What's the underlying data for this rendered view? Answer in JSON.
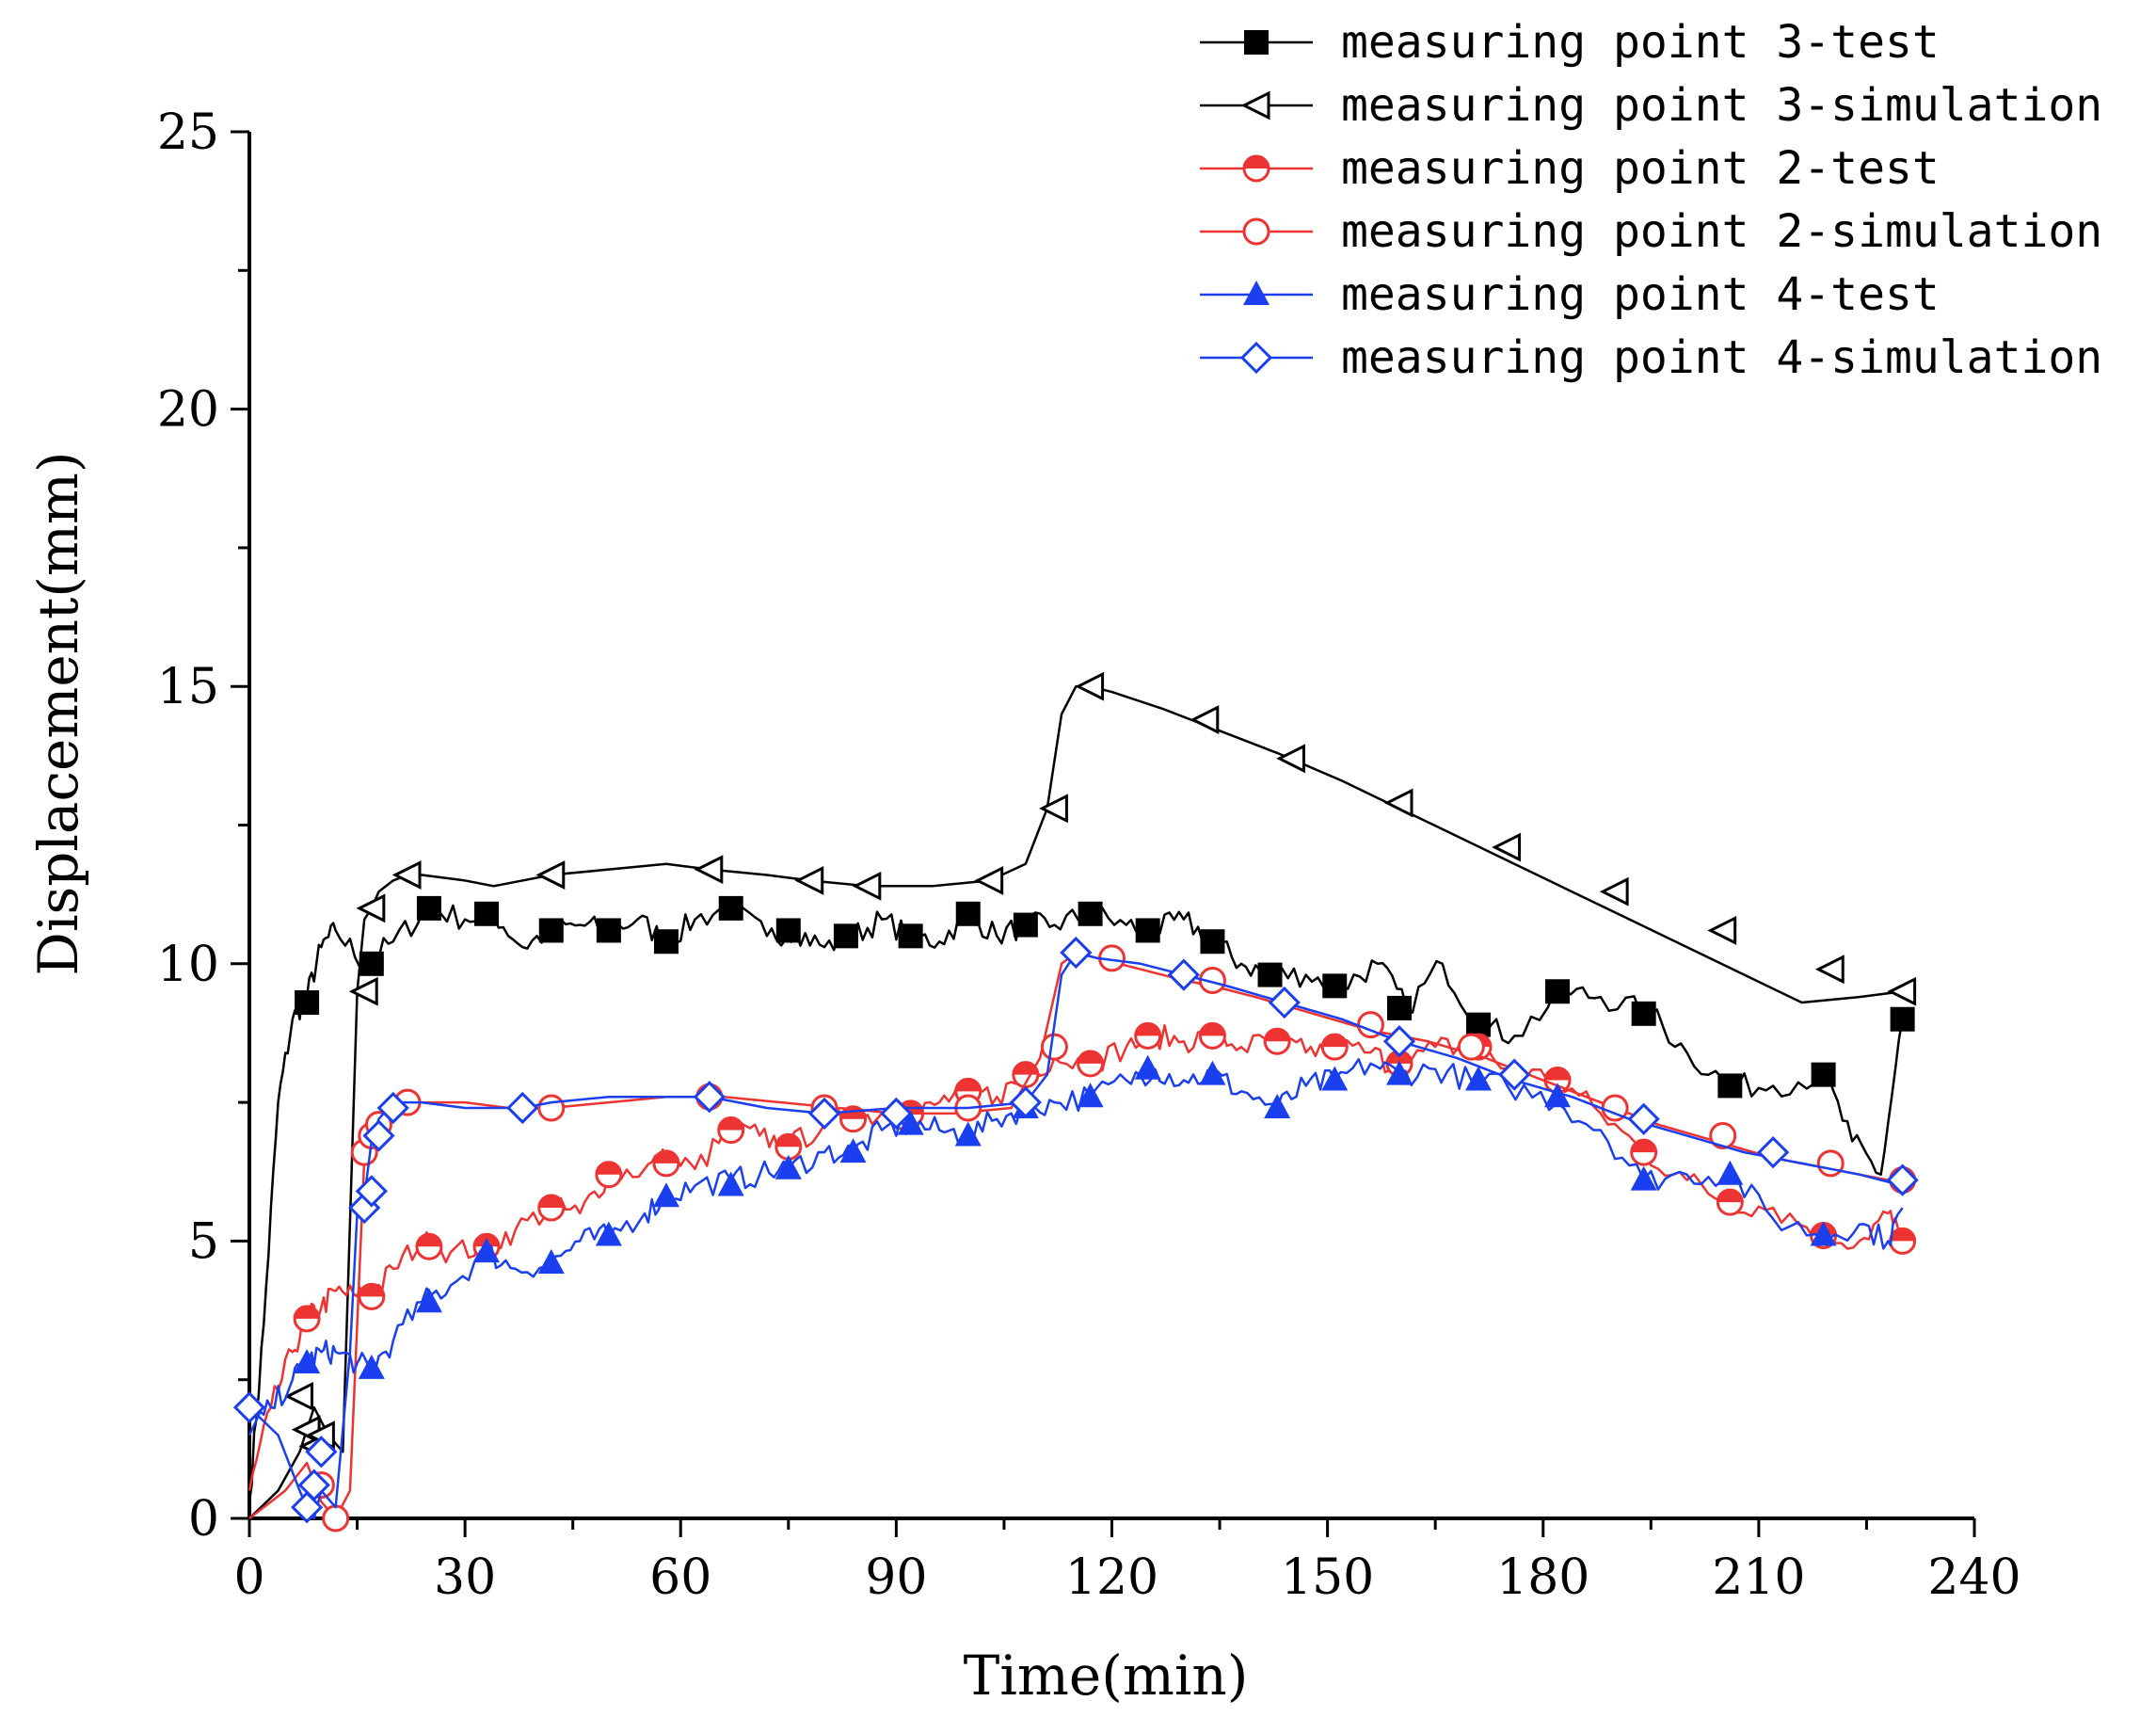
{
  "chart_data": {
    "type": "line",
    "title": "",
    "xlabel": "Time(min)",
    "ylabel": "Displacement(mm)",
    "xlim": [
      0,
      240
    ],
    "ylim": [
      0,
      25
    ],
    "xticks": [
      0,
      30,
      60,
      90,
      120,
      150,
      180,
      210,
      240
    ],
    "yticks": [
      0,
      5,
      10,
      15,
      20,
      25
    ],
    "grid": false,
    "legend_position": "top-right",
    "series": [
      {
        "name": "measuring point 3-test",
        "color": "#000000",
        "marker": "filled-square",
        "x": [
          0,
          2,
          4,
          6,
          8,
          10,
          12,
          16,
          20,
          25,
          30,
          34,
          38,
          42,
          46,
          50,
          54,
          58,
          62,
          67,
          72,
          76,
          80,
          84,
          88,
          92,
          96,
          100,
          104,
          108,
          112,
          117,
          122,
          126,
          130,
          134,
          138,
          142,
          147,
          152,
          157,
          161,
          166,
          171,
          176,
          183,
          188,
          195,
          200,
          206,
          212,
          219,
          223,
          227,
          230
        ],
        "y": [
          0.3,
          3.5,
          7.5,
          9.0,
          9.4,
          10.3,
          10.6,
          10.0,
          10.4,
          11.0,
          10.8,
          10.9,
          10.3,
          10.6,
          10.7,
          10.6,
          10.8,
          10.4,
          10.8,
          11.0,
          10.5,
          10.6,
          10.3,
          10.5,
          10.8,
          10.5,
          10.4,
          10.9,
          10.5,
          10.7,
          10.7,
          10.9,
          10.7,
          10.6,
          10.8,
          10.4,
          10.0,
          9.8,
          9.8,
          9.6,
          10.0,
          9.2,
          10.0,
          8.9,
          8.7,
          9.5,
          9.4,
          9.1,
          8.4,
          7.8,
          7.8,
          8.0,
          6.8,
          6.2,
          9.0
        ],
        "marker_x": [
          8,
          17,
          25,
          33,
          42,
          50,
          58,
          67,
          75,
          83,
          92,
          100,
          108,
          117,
          125,
          134,
          142,
          151,
          160,
          171,
          182,
          194,
          206,
          219,
          230
        ],
        "marker_y": [
          9.3,
          10.0,
          11.0,
          10.9,
          10.6,
          10.6,
          10.4,
          11.0,
          10.6,
          10.5,
          10.5,
          10.9,
          10.7,
          10.9,
          10.6,
          10.4,
          9.8,
          9.6,
          9.2,
          8.9,
          9.5,
          9.1,
          7.8,
          8.0,
          9.0
        ]
      },
      {
        "name": "measuring point 3-simulation",
        "color": "#000000",
        "marker": "open-triangle-left",
        "x": [
          0,
          4,
          7,
          9,
          11,
          13,
          15,
          16,
          17,
          18,
          20,
          22,
          24,
          30,
          34,
          38,
          42,
          50,
          58,
          64,
          72,
          78,
          86,
          95,
          103,
          108,
          111,
          113,
          115,
          117,
          120,
          127,
          135,
          143,
          152,
          160,
          168,
          176,
          184,
          192,
          200,
          208,
          216,
          224,
          230
        ],
        "y": [
          0,
          0.5,
          1.2,
          2.0,
          1.5,
          1.2,
          9.5,
          10.8,
          11.0,
          11.3,
          11.5,
          11.6,
          11.6,
          11.5,
          11.4,
          11.5,
          11.6,
          11.7,
          11.8,
          11.7,
          11.6,
          11.5,
          11.4,
          11.4,
          11.5,
          11.8,
          12.8,
          14.5,
          15.0,
          15.0,
          14.9,
          14.6,
          14.2,
          13.8,
          13.3,
          12.8,
          12.3,
          11.8,
          11.3,
          10.8,
          10.3,
          9.8,
          9.3,
          9.4,
          9.5
        ],
        "marker_x": [
          7,
          8,
          9,
          10,
          16,
          17,
          22,
          42,
          64,
          78,
          86,
          103,
          112,
          117,
          133,
          145,
          160,
          175,
          190,
          205,
          220,
          230
        ],
        "marker_y": [
          2.2,
          1.6,
          1.3,
          1.5,
          9.5,
          11.0,
          11.6,
          11.6,
          11.7,
          11.5,
          11.4,
          11.5,
          12.8,
          15.0,
          14.4,
          13.7,
          12.9,
          12.1,
          11.3,
          10.6,
          9.9,
          9.5
        ]
      },
      {
        "name": "measuring point 2-test",
        "color": "#ee3333",
        "marker": "half-filled-circle",
        "x": [
          0,
          3,
          6,
          8,
          10,
          12,
          15,
          17,
          20,
          24,
          28,
          33,
          37,
          42,
          46,
          50,
          55,
          58,
          62,
          67,
          71,
          75,
          80,
          84,
          88,
          92,
          96,
          100,
          104,
          108,
          112,
          117,
          122,
          126,
          130,
          134,
          138,
          143,
          147,
          151,
          156,
          160,
          165,
          170,
          175,
          182,
          188,
          194,
          200,
          206,
          212,
          219,
          224,
          228,
          230
        ],
        "y": [
          0.5,
          2.0,
          3.0,
          3.6,
          3.8,
          4.1,
          4.0,
          4.0,
          4.5,
          5.0,
          4.8,
          4.9,
          5.2,
          5.6,
          5.5,
          6.2,
          6.3,
          6.5,
          6.3,
          7.0,
          6.9,
          6.7,
          7.1,
          7.2,
          7.3,
          7.2,
          7.5,
          7.7,
          7.6,
          8.0,
          8.3,
          8.2,
          8.5,
          8.7,
          8.6,
          8.7,
          8.5,
          8.6,
          8.4,
          8.5,
          8.4,
          8.1,
          8.5,
          8.5,
          8.1,
          7.9,
          7.3,
          6.6,
          6.1,
          5.7,
          5.6,
          5.1,
          5.0,
          5.5,
          5.0
        ],
        "marker_x": [
          8,
          17,
          25,
          33,
          42,
          50,
          58,
          67,
          75,
          84,
          92,
          100,
          108,
          117,
          125,
          134,
          143,
          151,
          160,
          171,
          182,
          194,
          206,
          219,
          230
        ],
        "marker_y": [
          3.6,
          4.0,
          4.9,
          4.9,
          5.6,
          6.2,
          6.4,
          7.0,
          6.7,
          7.2,
          7.3,
          7.7,
          8.0,
          8.2,
          8.7,
          8.7,
          8.6,
          8.5,
          8.2,
          8.5,
          7.9,
          6.6,
          5.7,
          5.1,
          5.0
        ]
      },
      {
        "name": "measuring point 2-simulation",
        "color": "#ee3333",
        "marker": "open-circle",
        "x": [
          0,
          5,
          8,
          10,
          12,
          14,
          16,
          17,
          18,
          20,
          22,
          24,
          30,
          36,
          42,
          50,
          58,
          66,
          74,
          82,
          90,
          98,
          106,
          110,
          113,
          115,
          118,
          124,
          130,
          134,
          140,
          148,
          156,
          164,
          172,
          180,
          188,
          196,
          204,
          212,
          220,
          228,
          230
        ],
        "y": [
          0,
          0.5,
          1.0,
          0.3,
          0.0,
          0.5,
          6.5,
          6.8,
          7.0,
          7.3,
          7.5,
          7.5,
          7.5,
          7.4,
          7.4,
          7.5,
          7.6,
          7.6,
          7.5,
          7.4,
          7.3,
          7.3,
          7.4,
          8.3,
          10.0,
          10.2,
          10.1,
          9.9,
          9.7,
          9.6,
          9.4,
          9.1,
          8.8,
          8.6,
          8.3,
          7.9,
          7.5,
          7.1,
          6.8,
          6.5,
          6.3,
          6.1,
          6.1
        ],
        "marker_x": [
          10,
          12,
          16,
          17,
          18,
          22,
          42,
          64,
          80,
          100,
          112,
          120,
          134,
          156,
          170,
          190,
          205,
          220,
          230
        ],
        "marker_y": [
          0.6,
          0.0,
          6.6,
          6.9,
          7.1,
          7.5,
          7.4,
          7.6,
          7.4,
          7.4,
          8.5,
          10.1,
          9.7,
          8.9,
          8.5,
          7.4,
          6.9,
          6.4,
          6.1
        ]
      },
      {
        "name": "measuring point 4-test",
        "color": "#1a3fee",
        "marker": "filled-triangle-up",
        "x": [
          0,
          3,
          6,
          8,
          10,
          12,
          15,
          17,
          20,
          24,
          28,
          33,
          37,
          42,
          46,
          50,
          55,
          58,
          62,
          67,
          71,
          75,
          80,
          84,
          88,
          92,
          96,
          100,
          104,
          108,
          112,
          117,
          122,
          126,
          130,
          134,
          138,
          143,
          147,
          151,
          156,
          160,
          165,
          170,
          175,
          182,
          188,
          194,
          200,
          206,
          212,
          219,
          224,
          228,
          230
        ],
        "y": [
          1.5,
          2.0,
          2.5,
          2.8,
          3.0,
          3.0,
          2.8,
          2.7,
          3.2,
          3.9,
          4.2,
          4.8,
          4.5,
          4.6,
          5.0,
          5.1,
          5.5,
          5.8,
          6.0,
          6.1,
          6.2,
          6.3,
          6.6,
          6.6,
          7.0,
          7.1,
          7.0,
          6.9,
          7.2,
          7.4,
          7.5,
          7.6,
          7.9,
          8.1,
          7.9,
          8.0,
          7.7,
          7.4,
          7.8,
          7.9,
          8.2,
          8.0,
          8.1,
          7.9,
          7.8,
          7.5,
          7.0,
          6.1,
          6.2,
          6.2,
          5.4,
          5.1,
          5.3,
          5.0,
          5.6
        ],
        "marker_x": [
          8,
          17,
          25,
          33,
          42,
          50,
          58,
          67,
          75,
          84,
          92,
          100,
          108,
          117,
          125,
          134,
          143,
          151,
          160,
          171,
          182,
          194,
          206,
          219
        ],
        "marker_y": [
          2.8,
          2.7,
          3.9,
          4.8,
          4.6,
          5.1,
          5.8,
          6.0,
          6.3,
          6.6,
          7.1,
          6.9,
          7.4,
          7.6,
          8.1,
          8.0,
          7.4,
          7.9,
          8.0,
          7.9,
          7.6,
          6.1,
          6.2,
          5.1
        ]
      },
      {
        "name": "measuring point 4-simulation",
        "color": "#1a3fee",
        "marker": "open-diamond",
        "x": [
          0,
          4,
          7,
          8,
          9,
          10,
          12,
          14,
          15,
          16,
          17,
          18,
          20,
          24,
          30,
          38,
          42,
          50,
          58,
          64,
          72,
          80,
          90,
          100,
          108,
          111,
          113,
          115,
          118,
          124,
          130,
          136,
          144,
          152,
          160,
          168,
          176,
          184,
          192,
          200,
          208,
          216,
          224,
          230
        ],
        "y": [
          2.0,
          1.5,
          0.5,
          0.2,
          0.0,
          0.5,
          0.2,
          3.0,
          5.5,
          5.8,
          6.8,
          7.2,
          7.5,
          7.5,
          7.4,
          7.4,
          7.5,
          7.6,
          7.6,
          7.6,
          7.4,
          7.3,
          7.4,
          7.4,
          7.5,
          8.0,
          9.8,
          10.2,
          10.1,
          10.0,
          9.8,
          9.6,
          9.3,
          9.0,
          8.6,
          8.3,
          7.9,
          7.6,
          7.2,
          6.9,
          6.6,
          6.4,
          6.2,
          6.0
        ],
        "marker_x": [
          0,
          8,
          9,
          10,
          16,
          17,
          18,
          20,
          38,
          64,
          80,
          90,
          108,
          115,
          130,
          144,
          160,
          176,
          194,
          212,
          230
        ],
        "marker_y": [
          2.0,
          0.2,
          0.6,
          1.2,
          5.6,
          5.9,
          6.9,
          7.4,
          7.4,
          7.6,
          7.3,
          7.3,
          7.5,
          10.2,
          9.8,
          9.3,
          8.6,
          8.0,
          7.2,
          6.6,
          6.1
        ]
      }
    ]
  }
}
